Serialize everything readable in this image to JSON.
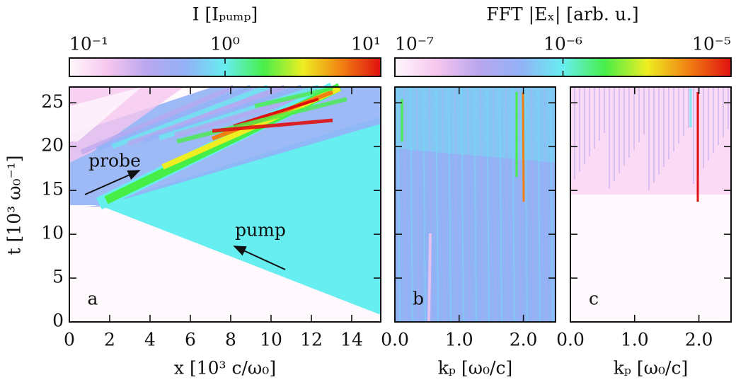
{
  "chart_data": [
    {
      "type": "heatmap",
      "panel_label": "a",
      "xlabel": "x [10³ c/ω₀]",
      "ylabel": "t [10³ ω₀⁻¹]",
      "xlim": [
        0,
        15.44
      ],
      "xticks": [
        0,
        2,
        4,
        6,
        8,
        10,
        12,
        14
      ],
      "ylim": [
        0,
        26.8
      ],
      "yticks": [
        0,
        5,
        10,
        15,
        20,
        25
      ],
      "annotations": [
        "probe",
        "pump"
      ]
    },
    {
      "type": "heatmap",
      "panel_label": "b",
      "xlabel": "kₚ [ω₀/c]",
      "xlim": [
        0,
        2.5
      ],
      "xticks": [
        {
          "value": 0,
          "label": "0.0"
        },
        {
          "value": 1,
          "label": "1.0"
        },
        {
          "value": 2,
          "label": "2.0"
        }
      ]
    },
    {
      "type": "heatmap",
      "panel_label": "c",
      "xlabel": "kₚ [ω₀/c]",
      "xlim": [
        0,
        2.5
      ],
      "xticks": [
        {
          "value": 0,
          "label": "0.0"
        },
        {
          "value": 1,
          "label": "1.0"
        },
        {
          "value": 2,
          "label": "2.0"
        }
      ]
    }
  ],
  "colorbars": [
    {
      "title": "I [Iₚᵤₘₚ]",
      "log": true,
      "lim": [
        0.1,
        10
      ],
      "ticks": [
        {
          "value": 0.1,
          "label": "10⁻¹"
        },
        {
          "value": 1,
          "label": "10⁰"
        },
        {
          "value": 10,
          "label": "10¹"
        }
      ]
    },
    {
      "title": "FFT |Eₓ| [arb. u.]",
      "log": true,
      "lim": [
        1e-07,
        1e-05
      ],
      "ticks": [
        {
          "value": 1e-07,
          "label": "10⁻⁷"
        },
        {
          "value": 1e-06,
          "label": "10⁻⁶"
        },
        {
          "value": 1e-05,
          "label": "10⁻⁵"
        }
      ]
    }
  ],
  "colormap": [
    "#fff8fc",
    "#f6c6ee",
    "#b9a6ee",
    "#92b2f6",
    "#66eef0",
    "#48ee48",
    "#eeee22",
    "#f08012",
    "#e01010"
  ]
}
